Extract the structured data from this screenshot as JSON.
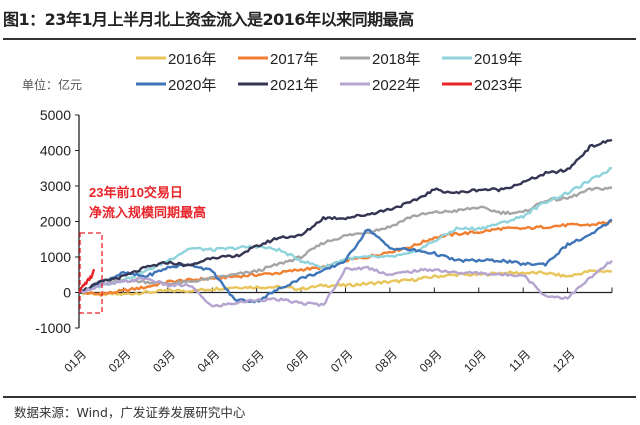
{
  "title": "图1：23年1月上半月北上资金流入是2016年以来同期最高",
  "source": "数据来源：Wind，广发证券发展研究中心",
  "chart_data": {
    "type": "line",
    "title": "",
    "ylabel": "单位：亿元",
    "xlabel": "",
    "ylim": [
      -1000,
      5000
    ],
    "yticks": [
      "-1000",
      "0",
      "1000",
      "2000",
      "3000",
      "4000",
      "5000"
    ],
    "xtick_labels": [
      "01月",
      "02月",
      "03月",
      "04月",
      "05月",
      "06月",
      "07月",
      "08月",
      "09月",
      "10月",
      "11月",
      "12月"
    ],
    "x_months": [
      0,
      0.5,
      1,
      1.5,
      2,
      2.5,
      3,
      3.5,
      4,
      4.5,
      5,
      5.5,
      6,
      6.5,
      7,
      7.5,
      8,
      8.5,
      9,
      9.5,
      10,
      10.5,
      11,
      11.5,
      12
    ],
    "grid": false,
    "legend_position": "top",
    "series": [
      {
        "name": "2016年",
        "color": "#E8C55A",
        "values": [
          0,
          -50,
          -50,
          0,
          50,
          50,
          100,
          150,
          150,
          150,
          100,
          200,
          200,
          250,
          300,
          350,
          450,
          500,
          500,
          550,
          550,
          550,
          450,
          600,
          600
        ]
      },
      {
        "name": "2017年",
        "color": "#F07F32",
        "values": [
          0,
          -50,
          50,
          150,
          300,
          350,
          400,
          450,
          500,
          550,
          650,
          700,
          900,
          1000,
          1150,
          1300,
          1550,
          1650,
          1700,
          1800,
          1800,
          1850,
          1900,
          1900,
          2000
        ]
      },
      {
        "name": "2018年",
        "color": "#A5A5A5",
        "values": [
          0,
          200,
          350,
          300,
          250,
          300,
          400,
          500,
          600,
          800,
          1000,
          1400,
          1600,
          1700,
          1850,
          2150,
          2250,
          2300,
          2400,
          2250,
          2250,
          2600,
          2650,
          2900,
          2950
        ]
      },
      {
        "name": "2019年",
        "color": "#8FD3DD",
        "values": [
          0,
          200,
          350,
          600,
          900,
          1250,
          1200,
          1250,
          1300,
          1200,
          900,
          700,
          950,
          1000,
          1000,
          1100,
          1450,
          1800,
          1800,
          1950,
          2150,
          2550,
          2800,
          3150,
          3500
        ]
      },
      {
        "name": "2020年",
        "color": "#3E75B8",
        "values": [
          0,
          300,
          550,
          450,
          700,
          800,
          600,
          -200,
          -250,
          100,
          400,
          600,
          900,
          1800,
          1250,
          1200,
          1100,
          900,
          900,
          900,
          800,
          800,
          1350,
          1600,
          2050
        ]
      },
      {
        "name": "2021年",
        "color": "#343552",
        "values": [
          0,
          300,
          450,
          700,
          850,
          750,
          1000,
          1000,
          1300,
          1550,
          1600,
          2100,
          2100,
          2200,
          2350,
          2550,
          2900,
          2800,
          2900,
          2900,
          3100,
          3350,
          3450,
          4100,
          4300
        ]
      },
      {
        "name": "2022年",
        "color": "#B4A4CF",
        "values": [
          0,
          200,
          300,
          400,
          200,
          200,
          -400,
          -300,
          -200,
          -200,
          -300,
          -350,
          650,
          700,
          500,
          600,
          650,
          550,
          550,
          500,
          500,
          -100,
          -150,
          400,
          900
        ]
      },
      {
        "name": "2023年",
        "color": "#E8242A",
        "x_months": [
          0,
          0.07,
          0.14,
          0.21,
          0.28,
          0.35
        ],
        "values": [
          0,
          150,
          250,
          350,
          450,
          650
        ]
      }
    ],
    "annotation": {
      "lines": [
        "23年前10交易日",
        "净流入规模同期最高"
      ],
      "color": "#E8242A"
    }
  }
}
